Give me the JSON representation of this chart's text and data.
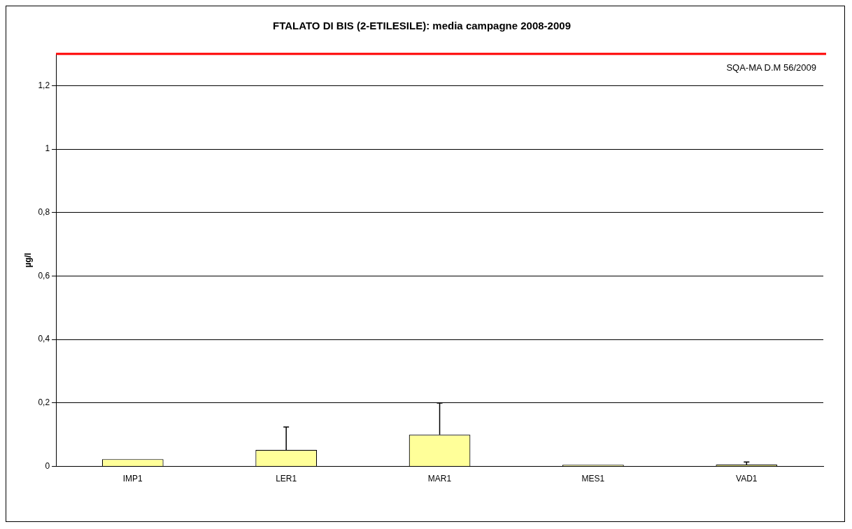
{
  "chart_data": {
    "type": "bar",
    "title": "FTALATO DI BIS (2-ETILESILE): media campagne 2008-2009",
    "ylabel": "µg/l",
    "categories": [
      "IMP1",
      "LER1",
      "MAR1",
      "MES1",
      "VAD1"
    ],
    "values": [
      0.023,
      0.052,
      0.1,
      0.005,
      0.006
    ],
    "errors": [
      null,
      [
        0.052,
        0.124
      ],
      [
        0.1,
        0.2
      ],
      null,
      [
        0.006,
        0.014
      ]
    ],
    "color": "#ffff99",
    "ylim": [
      0,
      1.3
    ],
    "yticks": [
      0,
      {
        "value": 0.2,
        "label": "0,2"
      },
      {
        "value": 0.4,
        "label": "0,4"
      },
      {
        "value": 0.6,
        "label": "0,6"
      },
      {
        "value": 0.8,
        "label": "0,8"
      },
      1,
      {
        "value": 1.2,
        "label": "1,2"
      }
    ],
    "grid": "y",
    "legend": false,
    "ref_lines": [
      {
        "axis": "y",
        "value": 1.3,
        "label": "SQA-MA D.M 56/2009",
        "color": "#ff0000"
      }
    ]
  }
}
